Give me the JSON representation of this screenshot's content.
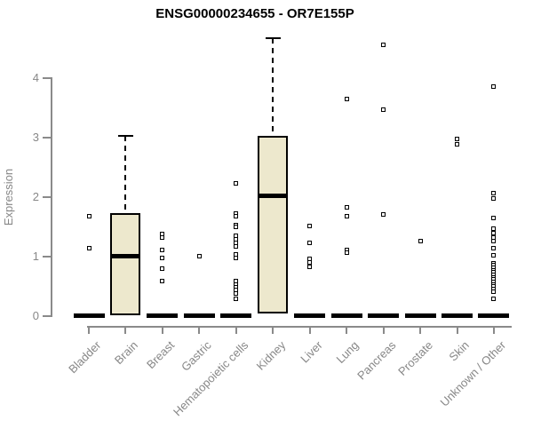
{
  "title": "ENSG00000234655 - OR7E155P",
  "y_axis": {
    "label": "Expression"
  },
  "colors": {
    "box_fill": "#ede8cd",
    "box_border": "#000000",
    "median": "#000000",
    "outlier": "#000000",
    "axis": "#8a8a8a",
    "axis_text": "#878787",
    "title_text": "#000000"
  },
  "chart_data": {
    "type": "boxplot",
    "title": "ENSG00000234655 - OR7E155P",
    "xlabel": "",
    "ylabel": "Expression",
    "ylim": [
      0,
      4.7
    ],
    "yticks": [
      0,
      1,
      2,
      3,
      4
    ],
    "grid": false,
    "legend": false,
    "categories": [
      "Bladder",
      "Brain",
      "Breast",
      "Gastric",
      "Hematopoietic cells",
      "Kidney",
      "Liver",
      "Lung",
      "Pancreas",
      "Prostate",
      "Skin",
      "Unknown / Other"
    ],
    "series": [
      {
        "name": "Bladder",
        "q1": 0,
        "median": 0,
        "q3": 0,
        "whisker_low": 0,
        "whisker_high": 0,
        "outliers": [
          1.67,
          1.12
        ]
      },
      {
        "name": "Brain",
        "q1": 0,
        "median": 1.0,
        "q3": 1.72,
        "whisker_low": 0,
        "whisker_high": 3.02,
        "outliers": []
      },
      {
        "name": "Breast",
        "q1": 0,
        "median": 0,
        "q3": 0,
        "whisker_low": 0,
        "whisker_high": 0,
        "outliers": [
          1.36,
          1.31,
          1.1,
          0.96,
          0.79,
          0.57
        ]
      },
      {
        "name": "Gastric",
        "q1": 0,
        "median": 0,
        "q3": 0,
        "whisker_low": 0,
        "whisker_high": 0,
        "outliers": [
          0.99
        ]
      },
      {
        "name": "Hematopoietic cells",
        "q1": 0,
        "median": 0,
        "q3": 0,
        "whisker_low": 0,
        "whisker_high": 0,
        "outliers": [
          2.21,
          1.71,
          1.67,
          1.52,
          1.48,
          1.34,
          1.28,
          1.22,
          1.16,
          1.02,
          0.97,
          0.57,
          0.52,
          0.47,
          0.42,
          0.37,
          0.27
        ]
      },
      {
        "name": "Kidney",
        "q1": 0.03,
        "median": 2.01,
        "q3": 3.01,
        "whisker_low": 0.03,
        "whisker_high": 4.66,
        "outliers": []
      },
      {
        "name": "Liver",
        "q1": 0,
        "median": 0,
        "q3": 0,
        "whisker_low": 0,
        "whisker_high": 0,
        "outliers": [
          1.5,
          1.22,
          0.95,
          0.89,
          0.82
        ]
      },
      {
        "name": "Lung",
        "q1": 0,
        "median": 0,
        "q3": 0,
        "whisker_low": 0,
        "whisker_high": 0,
        "outliers": [
          3.63,
          1.82,
          1.67,
          1.1,
          1.05
        ]
      },
      {
        "name": "Pancreas",
        "q1": 0,
        "median": 0,
        "q3": 0,
        "whisker_low": 0,
        "whisker_high": 0,
        "outliers": [
          4.55,
          3.46,
          1.69
        ]
      },
      {
        "name": "Prostate",
        "q1": 0,
        "median": 0,
        "q3": 0,
        "whisker_low": 0,
        "whisker_high": 0,
        "outliers": [
          1.24
        ]
      },
      {
        "name": "Skin",
        "q1": 0,
        "median": 0,
        "q3": 0,
        "whisker_low": 0,
        "whisker_high": 0,
        "outliers": [
          2.96,
          2.88
        ]
      },
      {
        "name": "Unknown / Other",
        "q1": 0,
        "median": 0,
        "q3": 0,
        "whisker_low": 0,
        "whisker_high": 0,
        "outliers": [
          3.84,
          2.05,
          1.97,
          1.64,
          1.45,
          1.38,
          1.31,
          1.24,
          1.12,
          1.01,
          0.88,
          0.84,
          0.8,
          0.76,
          0.72,
          0.68,
          0.64,
          0.6,
          0.56,
          0.52,
          0.48,
          0.44,
          0.4,
          0.27
        ]
      }
    ]
  }
}
